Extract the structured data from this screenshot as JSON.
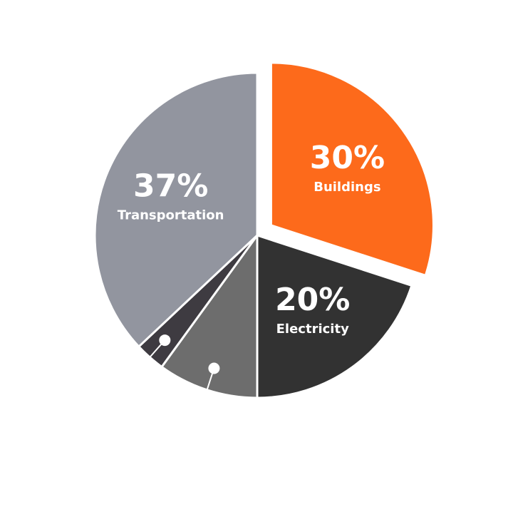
{
  "chart_data": {
    "type": "pie",
    "slices": [
      {
        "label": "Buildings",
        "value_label": "30%",
        "value": 30,
        "color": "#fd6a1b",
        "exploded": true
      },
      {
        "label": "Electricity",
        "value_label": "20%",
        "value": 20,
        "color": "#323232",
        "exploded": false
      },
      {
        "label": "",
        "value_label": "",
        "value": 10,
        "color": "#6d6d6d",
        "exploded": false
      },
      {
        "label": "",
        "value_label": "",
        "value": 3,
        "color": "#3e3b41",
        "exploded": false
      },
      {
        "label": "Transportation",
        "value_label": "37%",
        "value": 37,
        "color": "#92959f",
        "exploded": false
      }
    ],
    "title": "",
    "legend": "none",
    "callout_marker_color": "#ffffff"
  }
}
